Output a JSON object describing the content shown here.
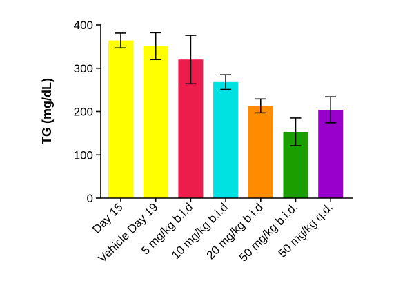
{
  "chart_data": {
    "type": "bar",
    "title": "",
    "xlabel": "",
    "ylabel": "TG (mg/dL)",
    "ylim": [
      0,
      400
    ],
    "yticks": [
      0,
      100,
      200,
      300,
      400
    ],
    "grid": false,
    "categories": [
      "Day 15",
      "Vehicle Day 19",
      "5 mg/kg b.i.d",
      "10 mg/kg b.i.d",
      "20 mg/kg b.i.d",
      "50 mg/kg b.i.d.",
      "50 mg/kg q.d."
    ],
    "values": [
      364,
      351,
      320,
      268,
      213,
      153,
      204
    ],
    "error": [
      17,
      31,
      56,
      17,
      16,
      32,
      30
    ],
    "colors": [
      "#ffff00",
      "#ffff00",
      "#ec1c4b",
      "#00e1e1",
      "#ff8c00",
      "#1a9e00",
      "#9a00cc"
    ]
  }
}
